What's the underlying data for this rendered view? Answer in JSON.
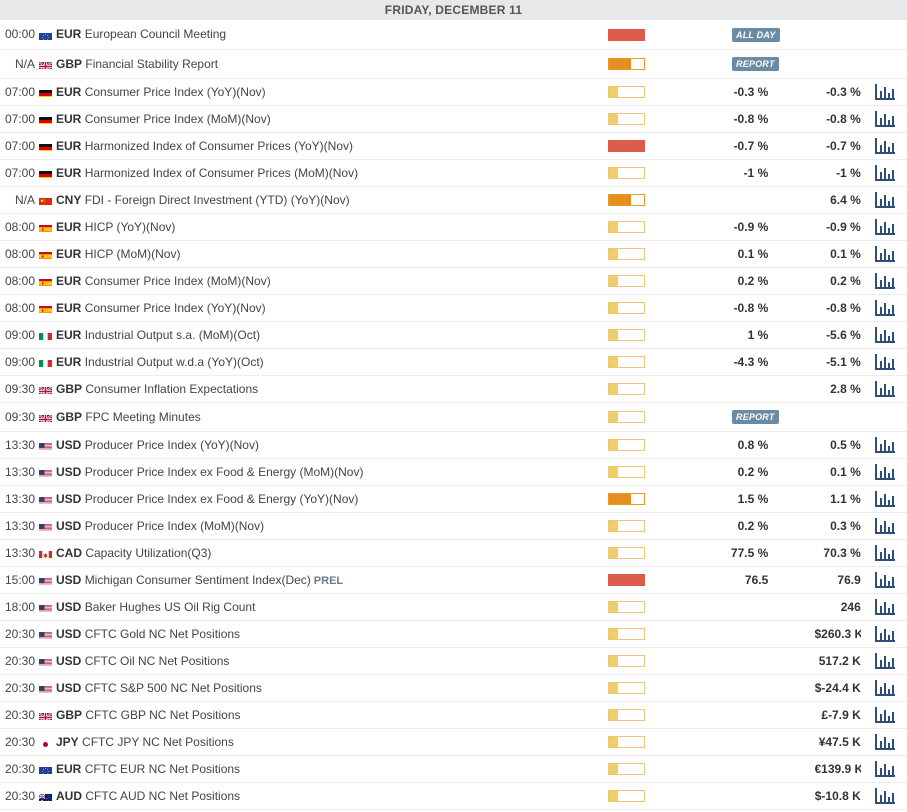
{
  "day_header": "FRIDAY, DECEMBER 11",
  "rows": [
    {
      "time": "00:00",
      "flag": "eu",
      "currency": "EUR",
      "event": "European Council Meeting",
      "volatility": "high",
      "badge": "ALL DAY",
      "actual": "",
      "previous": "",
      "chart": false
    },
    {
      "time": "N/A",
      "flag": "gb",
      "currency": "GBP",
      "event": "Financial Stability Report",
      "volatility": "med",
      "badge": "REPORT",
      "actual": "",
      "previous": "",
      "chart": false
    },
    {
      "time": "07:00",
      "flag": "de",
      "currency": "EUR",
      "event": "Consumer Price Index (YoY)(Nov)",
      "volatility": "low",
      "badge": "",
      "actual": "-0.3 %",
      "previous": "-0.3 %",
      "chart": true
    },
    {
      "time": "07:00",
      "flag": "de",
      "currency": "EUR",
      "event": "Consumer Price Index (MoM)(Nov)",
      "volatility": "low",
      "badge": "",
      "actual": "-0.8 %",
      "previous": "-0.8 %",
      "chart": true
    },
    {
      "time": "07:00",
      "flag": "de",
      "currency": "EUR",
      "event": "Harmonized Index of Consumer Prices (YoY)(Nov)",
      "volatility": "high",
      "badge": "",
      "actual": "-0.7 %",
      "previous": "-0.7 %",
      "chart": true
    },
    {
      "time": "07:00",
      "flag": "de",
      "currency": "EUR",
      "event": "Harmonized Index of Consumer Prices (MoM)(Nov)",
      "volatility": "low",
      "badge": "",
      "actual": "-1 %",
      "previous": "-1 %",
      "chart": true
    },
    {
      "time": "N/A",
      "flag": "cn",
      "currency": "CNY",
      "event": "FDI - Foreign Direct Investment (YTD) (YoY)(Nov)",
      "volatility": "med",
      "badge": "",
      "actual": "",
      "previous": "6.4 %",
      "chart": true
    },
    {
      "time": "08:00",
      "flag": "es",
      "currency": "EUR",
      "event": "HICP (YoY)(Nov)",
      "volatility": "low",
      "badge": "",
      "actual": "-0.9 %",
      "previous": "-0.9 %",
      "chart": true
    },
    {
      "time": "08:00",
      "flag": "es",
      "currency": "EUR",
      "event": "HICP (MoM)(Nov)",
      "volatility": "low",
      "badge": "",
      "actual": "0.1 %",
      "previous": "0.1 %",
      "chart": true
    },
    {
      "time": "08:00",
      "flag": "es",
      "currency": "EUR",
      "event": "Consumer Price Index (MoM)(Nov)",
      "volatility": "low",
      "badge": "",
      "actual": "0.2 %",
      "previous": "0.2 %",
      "chart": true
    },
    {
      "time": "08:00",
      "flag": "es",
      "currency": "EUR",
      "event": "Consumer Price Index (YoY)(Nov)",
      "volatility": "low",
      "badge": "",
      "actual": "-0.8 %",
      "previous": "-0.8 %",
      "chart": true
    },
    {
      "time": "09:00",
      "flag": "it",
      "currency": "EUR",
      "event": "Industrial Output s.a. (MoM)(Oct)",
      "volatility": "low",
      "badge": "",
      "actual": "1 %",
      "previous": "-5.6 %",
      "chart": true
    },
    {
      "time": "09:00",
      "flag": "it",
      "currency": "EUR",
      "event": "Industrial Output w.d.a (YoY)(Oct)",
      "volatility": "low",
      "badge": "",
      "actual": "-4.3 %",
      "previous": "-5.1 %",
      "chart": true
    },
    {
      "time": "09:30",
      "flag": "gb",
      "currency": "GBP",
      "event": "Consumer Inflation Expectations",
      "volatility": "low",
      "badge": "",
      "actual": "",
      "previous": "2.8 %",
      "chart": true
    },
    {
      "time": "09:30",
      "flag": "gb",
      "currency": "GBP",
      "event": "FPC Meeting Minutes",
      "volatility": "low",
      "badge": "REPORT",
      "actual": "",
      "previous": "",
      "chart": false
    },
    {
      "time": "13:30",
      "flag": "us",
      "currency": "USD",
      "event": "Producer Price Index (YoY)(Nov)",
      "volatility": "low",
      "badge": "",
      "actual": "0.8 %",
      "previous": "0.5 %",
      "chart": true
    },
    {
      "time": "13:30",
      "flag": "us",
      "currency": "USD",
      "event": "Producer Price Index ex Food & Energy (MoM)(Nov)",
      "volatility": "low",
      "badge": "",
      "actual": "0.2 %",
      "previous": "0.1 %",
      "chart": true
    },
    {
      "time": "13:30",
      "flag": "us",
      "currency": "USD",
      "event": "Producer Price Index ex Food & Energy (YoY)(Nov)",
      "volatility": "med",
      "badge": "",
      "actual": "1.5 %",
      "previous": "1.1 %",
      "chart": true
    },
    {
      "time": "13:30",
      "flag": "us",
      "currency": "USD",
      "event": "Producer Price Index (MoM)(Nov)",
      "volatility": "low",
      "badge": "",
      "actual": "0.2 %",
      "previous": "0.3 %",
      "chart": true
    },
    {
      "time": "13:30",
      "flag": "ca",
      "currency": "CAD",
      "event": "Capacity Utilization(Q3)",
      "volatility": "low",
      "badge": "",
      "actual": "77.5 %",
      "previous": "70.3 %",
      "chart": true
    },
    {
      "time": "15:00",
      "flag": "us",
      "currency": "USD",
      "event": "Michigan Consumer Sentiment Index(Dec)",
      "prel": "PREL",
      "volatility": "high",
      "badge": "",
      "actual": "76.5",
      "previous": "76.9",
      "chart": true
    },
    {
      "time": "18:00",
      "flag": "us",
      "currency": "USD",
      "event": "Baker Hughes US Oil Rig Count",
      "volatility": "low",
      "badge": "",
      "actual": "",
      "previous": "246",
      "chart": true
    },
    {
      "time": "20:30",
      "flag": "us",
      "currency": "USD",
      "event": "CFTC Gold NC Net Positions",
      "volatility": "low",
      "badge": "",
      "actual": "",
      "previous": "$260.3 K",
      "chart": true
    },
    {
      "time": "20:30",
      "flag": "us",
      "currency": "USD",
      "event": "CFTC Oil NC Net Positions",
      "volatility": "low",
      "badge": "",
      "actual": "",
      "previous": "517.2 K",
      "chart": true
    },
    {
      "time": "20:30",
      "flag": "us",
      "currency": "USD",
      "event": "CFTC S&P 500 NC Net Positions",
      "volatility": "low",
      "badge": "",
      "actual": "",
      "previous": "$-24.4 K",
      "chart": true
    },
    {
      "time": "20:30",
      "flag": "gb",
      "currency": "GBP",
      "event": "CFTC GBP NC Net Positions",
      "volatility": "low",
      "badge": "",
      "actual": "",
      "previous": "£-7.9 K",
      "chart": true
    },
    {
      "time": "20:30",
      "flag": "jp",
      "currency": "JPY",
      "event": "CFTC JPY NC Net Positions",
      "volatility": "low",
      "badge": "",
      "actual": "",
      "previous": "¥47.5 K",
      "chart": true
    },
    {
      "time": "20:30",
      "flag": "eu",
      "currency": "EUR",
      "event": "CFTC EUR NC Net Positions",
      "volatility": "low",
      "badge": "",
      "actual": "",
      "previous": "€139.9 K",
      "chart": true
    },
    {
      "time": "20:30",
      "flag": "au",
      "currency": "AUD",
      "event": "CFTC AUD NC Net Positions",
      "volatility": "low",
      "badge": "",
      "actual": "",
      "previous": "$-10.8 K",
      "chart": true
    }
  ]
}
